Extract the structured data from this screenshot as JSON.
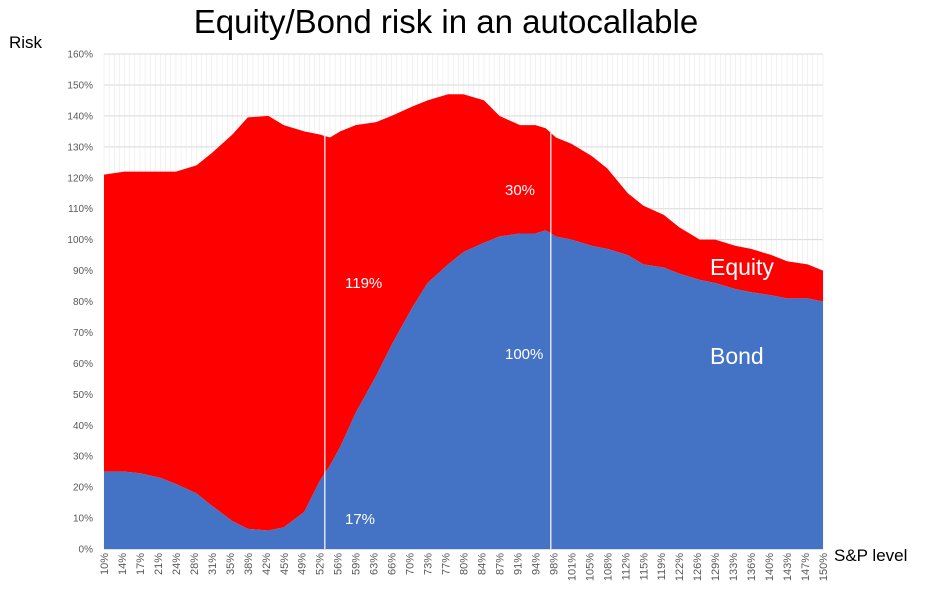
{
  "chart_data": {
    "type": "area",
    "stacked": true,
    "title": "Equity/Bond risk in an autocallable",
    "ylabel": "Risk",
    "xlabel": "S&P level",
    "ylim": [
      0,
      160
    ],
    "xlim": [
      10,
      150
    ],
    "y_ticks": [
      "0%",
      "10%",
      "20%",
      "30%",
      "40%",
      "50%",
      "60%",
      "70%",
      "80%",
      "90%",
      "100%",
      "110%",
      "120%",
      "130%",
      "140%",
      "150%",
      "160%"
    ],
    "x_ticks": [
      "10%",
      "14%",
      "17%",
      "21%",
      "24%",
      "28%",
      "31%",
      "35%",
      "38%",
      "42%",
      "45%",
      "49%",
      "52%",
      "56%",
      "59%",
      "63%",
      "66%",
      "70%",
      "73%",
      "77%",
      "80%",
      "84%",
      "87%",
      "91%",
      "94%",
      "98%",
      "101%",
      "105%",
      "108%",
      "112%",
      "115%",
      "119%",
      "122%",
      "126%",
      "129%",
      "133%",
      "136%",
      "140%",
      "143%",
      "147%",
      "150%"
    ],
    "grid": true,
    "colors": {
      "bond": "#4472c4",
      "equity": "#ff0000"
    },
    "series": [
      {
        "name": "Bond",
        "x": [
          10,
          14,
          17,
          21,
          24,
          28,
          31,
          35,
          38,
          42,
          45,
          49,
          52,
          54,
          56,
          59,
          63,
          66,
          70,
          73,
          77,
          80,
          84,
          87,
          91,
          94,
          96,
          98,
          101,
          105,
          108,
          112,
          115,
          119,
          122,
          126,
          129,
          133,
          136,
          140,
          143,
          147,
          150
        ],
        "values": [
          25,
          25,
          24.5,
          23,
          21,
          18,
          14,
          9,
          6.5,
          6,
          7,
          12,
          22,
          27,
          33,
          44,
          56,
          66,
          78,
          86,
          92,
          96,
          99,
          101,
          102,
          102,
          103,
          101,
          100,
          98,
          97,
          95,
          92,
          91,
          89,
          87,
          86,
          84,
          83,
          82,
          81,
          81,
          80
        ]
      },
      {
        "name": "Equity",
        "x": [
          10,
          14,
          17,
          21,
          24,
          28,
          31,
          35,
          38,
          42,
          45,
          49,
          52,
          54,
          56,
          59,
          63,
          66,
          70,
          73,
          77,
          80,
          84,
          87,
          91,
          94,
          96,
          98,
          101,
          105,
          108,
          112,
          115,
          119,
          122,
          126,
          129,
          133,
          136,
          140,
          143,
          147,
          150
        ],
        "values": [
          96,
          97,
          97.5,
          99,
          101,
          106,
          114,
          125,
          133,
          134,
          130,
          123,
          112,
          106,
          102,
          93,
          82,
          74,
          65,
          59,
          55,
          51,
          46,
          39,
          35,
          35,
          33,
          32,
          31,
          29,
          26,
          20,
          19,
          17,
          15,
          13,
          14,
          14,
          14,
          13,
          12,
          11,
          10
        ]
      }
    ],
    "annotations": [
      "119%",
      "17%",
      "30%",
      "100%"
    ],
    "reference_lines_x": [
      53,
      97
    ]
  }
}
